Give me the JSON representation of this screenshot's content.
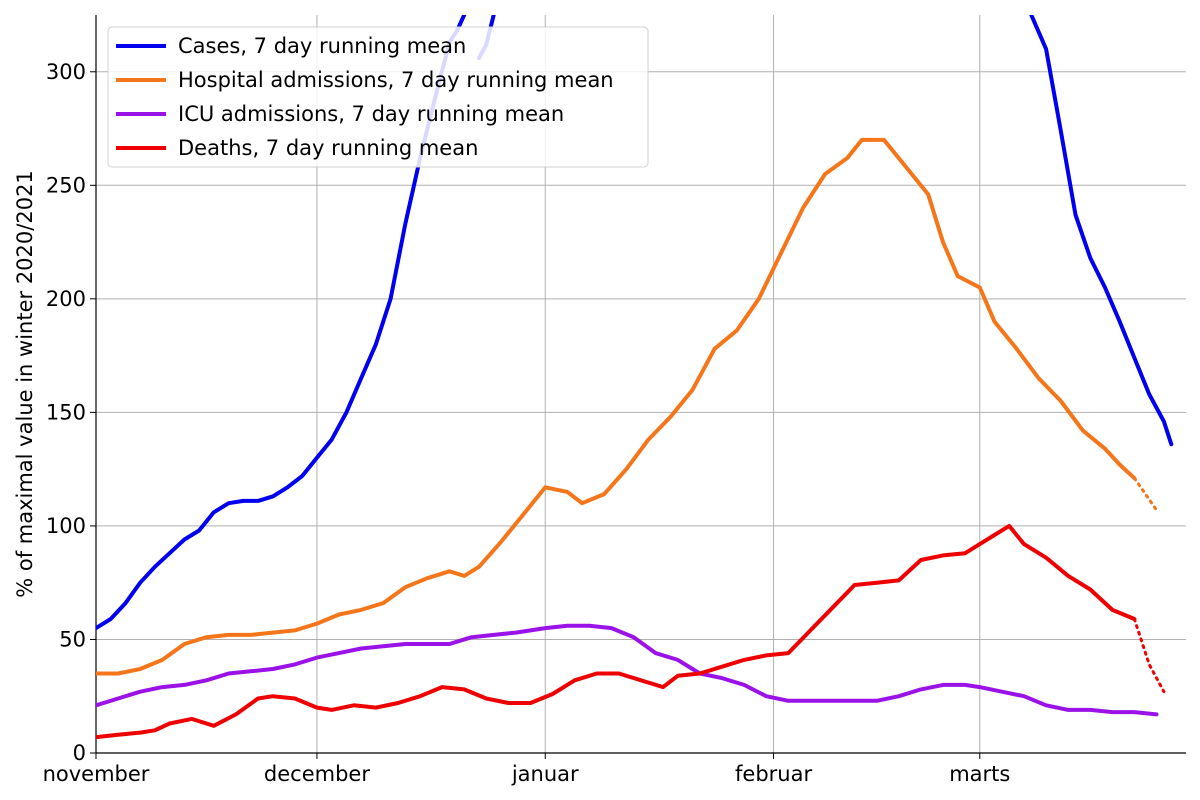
{
  "chart_data": {
    "type": "line",
    "title": "",
    "xlabel": "",
    "ylabel": "% of maximal value in winter 2020/2021",
    "xlim": [
      "2021-11-01",
      "2022-03-29"
    ],
    "ylim": [
      0,
      325
    ],
    "grid": true,
    "legend_position": "top-left",
    "x_ticks": [
      {
        "date": "2021-11-01",
        "label": "november"
      },
      {
        "date": "2021-12-01",
        "label": "december"
      },
      {
        "date": "2022-01-01",
        "label": "januar"
      },
      {
        "date": "2022-02-01",
        "label": "februar"
      },
      {
        "date": "2022-03-01",
        "label": "marts"
      }
    ],
    "y_ticks": [
      0,
      50,
      100,
      150,
      200,
      250,
      300
    ],
    "series": [
      {
        "name": "Cases, 7 day running mean",
        "color": "#0000ee",
        "points": [
          [
            "2021-11-01",
            55
          ],
          [
            "2021-11-03",
            59
          ],
          [
            "2021-11-05",
            66
          ],
          [
            "2021-11-07",
            75
          ],
          [
            "2021-11-09",
            82
          ],
          [
            "2021-11-11",
            88
          ],
          [
            "2021-11-13",
            94
          ],
          [
            "2021-11-15",
            98
          ],
          [
            "2021-11-17",
            106
          ],
          [
            "2021-11-19",
            110
          ],
          [
            "2021-11-21",
            111
          ],
          [
            "2021-11-23",
            111
          ],
          [
            "2021-11-25",
            113
          ],
          [
            "2021-11-27",
            117
          ],
          [
            "2021-11-29",
            122
          ],
          [
            "2021-12-01",
            130
          ],
          [
            "2021-12-03",
            138
          ],
          [
            "2021-12-05",
            150
          ],
          [
            "2021-12-07",
            165
          ],
          [
            "2021-12-09",
            180
          ],
          [
            "2021-12-11",
            200
          ],
          [
            "2021-12-13",
            233
          ],
          [
            "2021-12-15",
            262
          ],
          [
            "2021-12-17",
            288
          ],
          [
            "2021-12-19",
            313
          ],
          [
            "2021-12-20",
            318
          ],
          [
            "2021-12-21",
            325
          ]
        ],
        "points_after_clip": [
          [
            "2021-12-23",
            306
          ],
          [
            "2021-12-24",
            312
          ],
          [
            "2021-12-25",
            325
          ]
        ],
        "points_late": [
          [
            "2022-03-08",
            325
          ],
          [
            "2022-03-10",
            310
          ],
          [
            "2022-03-12",
            274
          ],
          [
            "2022-03-14",
            237
          ],
          [
            "2022-03-16",
            218
          ],
          [
            "2022-03-18",
            205
          ],
          [
            "2022-03-20",
            190
          ],
          [
            "2022-03-22",
            174
          ],
          [
            "2022-03-24",
            158
          ],
          [
            "2022-03-26",
            146
          ],
          [
            "2022-03-27",
            136
          ]
        ]
      },
      {
        "name": "Hospital admissions, 7 day running mean",
        "color": "#f5761a",
        "points": [
          [
            "2021-11-01",
            35
          ],
          [
            "2021-11-04",
            35
          ],
          [
            "2021-11-07",
            37
          ],
          [
            "2021-11-10",
            41
          ],
          [
            "2021-11-13",
            48
          ],
          [
            "2021-11-16",
            51
          ],
          [
            "2021-11-19",
            52
          ],
          [
            "2021-11-22",
            52
          ],
          [
            "2021-11-25",
            53
          ],
          [
            "2021-11-28",
            54
          ],
          [
            "2021-12-01",
            57
          ],
          [
            "2021-12-04",
            61
          ],
          [
            "2021-12-07",
            63
          ],
          [
            "2021-12-10",
            66
          ],
          [
            "2021-12-13",
            73
          ],
          [
            "2021-12-16",
            77
          ],
          [
            "2021-12-19",
            80
          ],
          [
            "2021-12-21",
            78
          ],
          [
            "2021-12-23",
            82
          ],
          [
            "2021-12-26",
            93
          ],
          [
            "2021-12-29",
            105
          ],
          [
            "2022-01-01",
            117
          ],
          [
            "2022-01-04",
            115
          ],
          [
            "2022-01-06",
            110
          ],
          [
            "2022-01-09",
            114
          ],
          [
            "2022-01-12",
            125
          ],
          [
            "2022-01-15",
            138
          ],
          [
            "2022-01-18",
            148
          ],
          [
            "2022-01-21",
            160
          ],
          [
            "2022-01-24",
            178
          ],
          [
            "2022-01-27",
            186
          ],
          [
            "2022-01-30",
            200
          ],
          [
            "2022-02-02",
            220
          ],
          [
            "2022-02-05",
            240
          ],
          [
            "2022-02-08",
            255
          ],
          [
            "2022-02-11",
            262
          ],
          [
            "2022-02-13",
            270
          ],
          [
            "2022-02-16",
            270
          ],
          [
            "2022-02-18",
            262
          ],
          [
            "2022-02-20",
            254
          ],
          [
            "2022-02-22",
            246
          ],
          [
            "2022-02-24",
            225
          ],
          [
            "2022-02-26",
            210
          ],
          [
            "2022-03-01",
            205
          ],
          [
            "2022-03-03",
            190
          ],
          [
            "2022-03-06",
            178
          ],
          [
            "2022-03-09",
            165
          ],
          [
            "2022-03-12",
            155
          ],
          [
            "2022-03-15",
            142
          ],
          [
            "2022-03-18",
            134
          ],
          [
            "2022-03-20",
            127
          ],
          [
            "2022-03-22",
            121
          ]
        ],
        "projection": [
          [
            "2022-03-22",
            121
          ],
          [
            "2022-03-25",
            107
          ]
        ]
      },
      {
        "name": "ICU admissions, 7 day running mean",
        "color": "#9b12e8",
        "points": [
          [
            "2021-11-01",
            21
          ],
          [
            "2021-11-04",
            24
          ],
          [
            "2021-11-07",
            27
          ],
          [
            "2021-11-10",
            29
          ],
          [
            "2021-11-13",
            30
          ],
          [
            "2021-11-16",
            32
          ],
          [
            "2021-11-19",
            35
          ],
          [
            "2021-11-22",
            36
          ],
          [
            "2021-11-25",
            37
          ],
          [
            "2021-11-28",
            39
          ],
          [
            "2021-12-01",
            42
          ],
          [
            "2021-12-04",
            44
          ],
          [
            "2021-12-07",
            46
          ],
          [
            "2021-12-10",
            47
          ],
          [
            "2021-12-13",
            48
          ],
          [
            "2021-12-16",
            48
          ],
          [
            "2021-12-19",
            48
          ],
          [
            "2021-12-22",
            51
          ],
          [
            "2021-12-25",
            52
          ],
          [
            "2021-12-28",
            53
          ],
          [
            "2022-01-01",
            55
          ],
          [
            "2022-01-04",
            56
          ],
          [
            "2022-01-07",
            56
          ],
          [
            "2022-01-10",
            55
          ],
          [
            "2022-01-13",
            51
          ],
          [
            "2022-01-16",
            44
          ],
          [
            "2022-01-19",
            41
          ],
          [
            "2022-01-22",
            35
          ],
          [
            "2022-01-25",
            33
          ],
          [
            "2022-01-28",
            30
          ],
          [
            "2022-01-31",
            25
          ],
          [
            "2022-02-03",
            23
          ],
          [
            "2022-02-06",
            23
          ],
          [
            "2022-02-09",
            23
          ],
          [
            "2022-02-12",
            23
          ],
          [
            "2022-02-15",
            23
          ],
          [
            "2022-02-18",
            25
          ],
          [
            "2022-02-21",
            28
          ],
          [
            "2022-02-24",
            30
          ],
          [
            "2022-02-27",
            30
          ],
          [
            "2022-03-01",
            29
          ],
          [
            "2022-03-04",
            27
          ],
          [
            "2022-03-07",
            25
          ],
          [
            "2022-03-10",
            21
          ],
          [
            "2022-03-13",
            19
          ],
          [
            "2022-03-16",
            19
          ],
          [
            "2022-03-19",
            18
          ],
          [
            "2022-03-22",
            18
          ],
          [
            "2022-03-25",
            17
          ]
        ]
      },
      {
        "name": "Deaths, 7 day running mean",
        "color": "#ee0000",
        "points": [
          [
            "2021-11-01",
            7
          ],
          [
            "2021-11-04",
            8
          ],
          [
            "2021-11-07",
            9
          ],
          [
            "2021-11-09",
            10
          ],
          [
            "2021-11-11",
            13
          ],
          [
            "2021-11-14",
            15
          ],
          [
            "2021-11-17",
            12
          ],
          [
            "2021-11-20",
            17
          ],
          [
            "2021-11-23",
            24
          ],
          [
            "2021-11-25",
            25
          ],
          [
            "2021-11-28",
            24
          ],
          [
            "2021-12-01",
            20
          ],
          [
            "2021-12-03",
            19
          ],
          [
            "2021-12-06",
            21
          ],
          [
            "2021-12-09",
            20
          ],
          [
            "2021-12-12",
            22
          ],
          [
            "2021-12-15",
            25
          ],
          [
            "2021-12-18",
            29
          ],
          [
            "2021-12-21",
            28
          ],
          [
            "2021-12-24",
            24
          ],
          [
            "2021-12-27",
            22
          ],
          [
            "2021-12-30",
            22
          ],
          [
            "2022-01-02",
            26
          ],
          [
            "2022-01-05",
            32
          ],
          [
            "2022-01-08",
            35
          ],
          [
            "2022-01-11",
            35
          ],
          [
            "2022-01-14",
            32
          ],
          [
            "2022-01-17",
            29
          ],
          [
            "2022-01-19",
            34
          ],
          [
            "2022-01-22",
            35
          ],
          [
            "2022-01-25",
            38
          ],
          [
            "2022-01-28",
            41
          ],
          [
            "2022-01-31",
            43
          ],
          [
            "2022-02-03",
            44
          ],
          [
            "2022-02-06",
            54
          ],
          [
            "2022-02-09",
            64
          ],
          [
            "2022-02-12",
            74
          ],
          [
            "2022-02-15",
            75
          ],
          [
            "2022-02-18",
            76
          ],
          [
            "2022-02-21",
            85
          ],
          [
            "2022-02-24",
            87
          ],
          [
            "2022-02-27",
            88
          ],
          [
            "2022-03-01",
            92
          ],
          [
            "2022-03-03",
            96
          ],
          [
            "2022-03-05",
            100
          ],
          [
            "2022-03-07",
            92
          ],
          [
            "2022-03-10",
            86
          ],
          [
            "2022-03-13",
            78
          ],
          [
            "2022-03-16",
            72
          ],
          [
            "2022-03-19",
            63
          ],
          [
            "2022-03-22",
            59
          ]
        ],
        "projection": [
          [
            "2022-03-22",
            59
          ],
          [
            "2022-03-24",
            39
          ],
          [
            "2022-03-26",
            27
          ]
        ]
      }
    ]
  }
}
